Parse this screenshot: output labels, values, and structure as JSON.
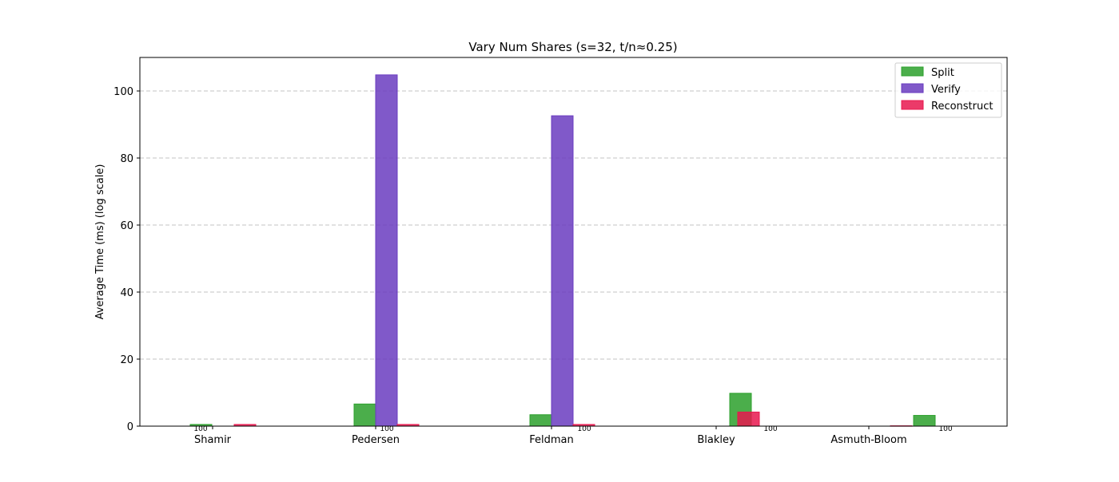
{
  "chart_data": {
    "type": "bar",
    "title": "Vary Num Shares (s=32, t/n≈0.25)",
    "xlabel": "",
    "ylabel": "Average Time (ms) (log scale)",
    "ylim": [
      0,
      110
    ],
    "yticks": [
      0,
      20,
      40,
      60,
      80,
      100
    ],
    "grid": true,
    "legend_position": "top-right",
    "categories": [
      "Shamir",
      "Pedersen",
      "Feldman",
      "Blakley",
      "Asmuth-Bloom"
    ],
    "bar_annotations": [
      "100",
      "100",
      "100",
      "100",
      "100"
    ],
    "series": [
      {
        "name": "Split",
        "color": "#2ca02c",
        "values": [
          0.5,
          6.6,
          3.4,
          9.8,
          3.2
        ]
      },
      {
        "name": "Verify",
        "color": "#6a3cc0",
        "values": [
          null,
          104.8,
          92.6,
          null,
          null
        ]
      },
      {
        "name": "Reconstruct",
        "color": "#e8184f",
        "values": [
          0.5,
          0.5,
          0.5,
          4.2,
          0.1
        ]
      }
    ]
  }
}
